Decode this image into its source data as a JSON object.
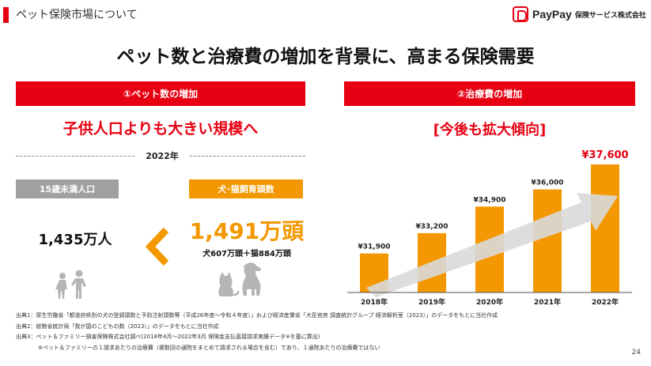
{
  "header": {
    "title": "ペット保険市場について"
  },
  "logo": {
    "name": "PayPay",
    "sub": "保険サービス株式会社"
  },
  "main_title": "ペット数と治療費の増加を背景に、高まる保険需要",
  "left_panel": {
    "heading": "①ペット数の増加",
    "subheading": "子供人口よりも大きい規模へ",
    "year": "2022年",
    "children_label": "15歳未満人口",
    "children_value": "1,435万人",
    "pets_label": "犬･猫飼育頭数",
    "pets_value": "1,491万頭",
    "pets_detail": "犬607万頭＋猫884万頭"
  },
  "right_panel": {
    "heading": "②治療費の増加",
    "subheading": "[今後も拡大傾向]"
  },
  "chart_data": {
    "type": "bar",
    "categories": [
      "2018年",
      "2019年",
      "2020年",
      "2021年",
      "2022年"
    ],
    "values": [
      31900,
      33200,
      34900,
      36000,
      37600
    ],
    "value_labels": [
      "¥31,900",
      "¥33,200",
      "¥34,900",
      "¥36,000",
      "¥37,600"
    ],
    "title": "",
    "xlabel": "",
    "ylabel": "",
    "ylim": [
      29400,
      37600
    ],
    "grid": false,
    "bar_color": "#f39800",
    "highlight_label_color": "#e60012"
  },
  "footnotes": [
    "出典1：厚生労働省「都道府県別の犬の登録頭数と予防注射頭数等（平成26年度～令和４年度）」および経済産業省「大臣官房 調査統計グループ 経済解析室（2023）」のデータをもとに当社作成",
    "出典2：総務省統計局「我が国のこどもの数（2023）」のデータをもとに当社作成",
    "出典3：ペット＆ファミリー損害保険株式会社調べ(2018年4月～2022年3月 保険金支払直接請求実績データ※を基に算出)",
    "　　　　※ペット＆ファミリーの１請求あたりの治療費（複数回の通院をまとめて請求される場合を含む）であり、１通院あたりの治療費ではない"
  ],
  "page_number": "24",
  "colors": {
    "red": "#e60012",
    "orange": "#f39800",
    "gray": "#a0a0a0"
  }
}
